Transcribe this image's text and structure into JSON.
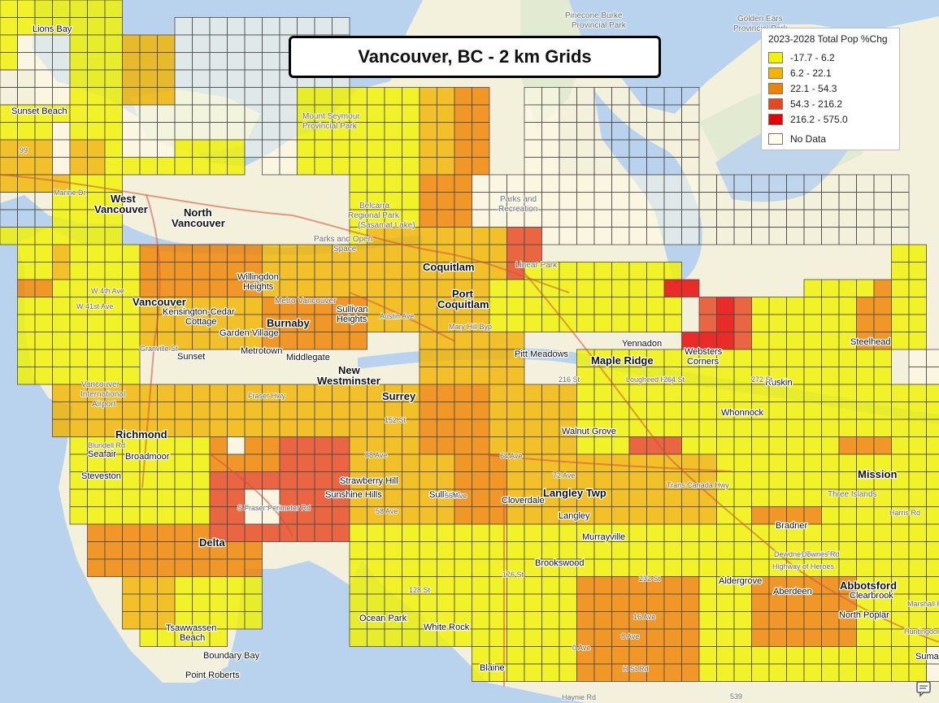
{
  "title": "Vancouver, BC - 2 km Grids",
  "legend": {
    "title": "2023-2028 Total Pop %Chg",
    "classes": [
      {
        "label": "-17.7 - 6.2",
        "color": "#f2f200"
      },
      {
        "label": "6.2 - 22.1",
        "color": "#f2b400"
      },
      {
        "label": "22.1 - 54.3",
        "color": "#f08200"
      },
      {
        "label": "54.3 - 216.2",
        "color": "#e8461e"
      },
      {
        "label": "216.2 - 575.0",
        "color": "#e60000"
      }
    ],
    "nodata": {
      "label": "No Data",
      "color": "#fffbe8"
    }
  },
  "colors": {
    "water": "#b9d3ee",
    "land": "#f3f0dc",
    "gridline": "#4a4a4a",
    "highway": "#d4503c"
  },
  "places": [
    "Lions Bay",
    "Sunset Beach",
    "West",
    "Vancouver",
    "North",
    "Vancouver",
    "Pinecone Burke",
    "Provincial Park",
    "Golden Ears",
    "Provincial Park",
    "Mount Seymour",
    "Provincial Park",
    "Belcarra",
    "Regional Park",
    "(Sasamat Lake)",
    "Parks and",
    "Recreation",
    "Parks and Open",
    "Space",
    "Coquitlam",
    "Linear Park",
    "Willingdon",
    "Heights",
    "Metro Vancouver",
    "Port",
    "Coquitlam",
    "Sullivan",
    "Heights",
    "Vancouver",
    "Kensington-Cedar",
    "Cottage",
    "Burnaby",
    "Garden Village",
    "Metrotown",
    "Middlegate",
    "New",
    "Westminster",
    "Sunset",
    "Pitt Meadows",
    "Maple Ridge",
    "Yennadon",
    "Websters",
    "Corners",
    "Steelhead",
    "Ruskin",
    "Whonnock",
    "Vancouver",
    "International",
    "Airport",
    "Surrey",
    "Richmond",
    "Seafair",
    "Broadmoor",
    "Steveston",
    "Walnut Grove",
    "Strawberry Hill",
    "Sunshine Hills",
    "Sullivan",
    "Cloverdale",
    "Langley Twp",
    "Langley",
    "Murrayville",
    "Mission",
    "Three Islands",
    "Delta",
    "Bradner",
    "Brookswood",
    "Aldergrove",
    "Aberdeen",
    "Abbotsford",
    "Clearbrook",
    "North Poplar",
    "Ocean Park",
    "White Rock",
    "Tsawwassen",
    "Beach",
    "Boundary Bay",
    "Point Roberts",
    "Blaine",
    "Sumas"
  ],
  "roads": [
    "99",
    "Marine Dr",
    "W 4th Ave",
    "W 41st Ave",
    "Granville St",
    "Austin Ave",
    "Mary Hill Byp",
    "S Fraser Perimeter Rd",
    "Fraser Hwy",
    "88 Ave",
    "72 Ave",
    "64 Ave",
    "56 Ave",
    "58 Ave",
    "Trans Canada Hwy",
    "Highway of Heroes",
    "Lougheed Hwy",
    "Dewdney Trunk Rd",
    "Blundell Rd",
    "176 St",
    "128 St",
    "152 St",
    "232 St",
    "264 St",
    "272 St",
    "216 St",
    "Huntingdon Rd",
    "Marshall Rd",
    "Harris Rd",
    "Downes Rd",
    "16 Ave",
    "8 Ave",
    "0 Ave",
    "H St Rd",
    "Haynie Rd",
    "539"
  ]
}
